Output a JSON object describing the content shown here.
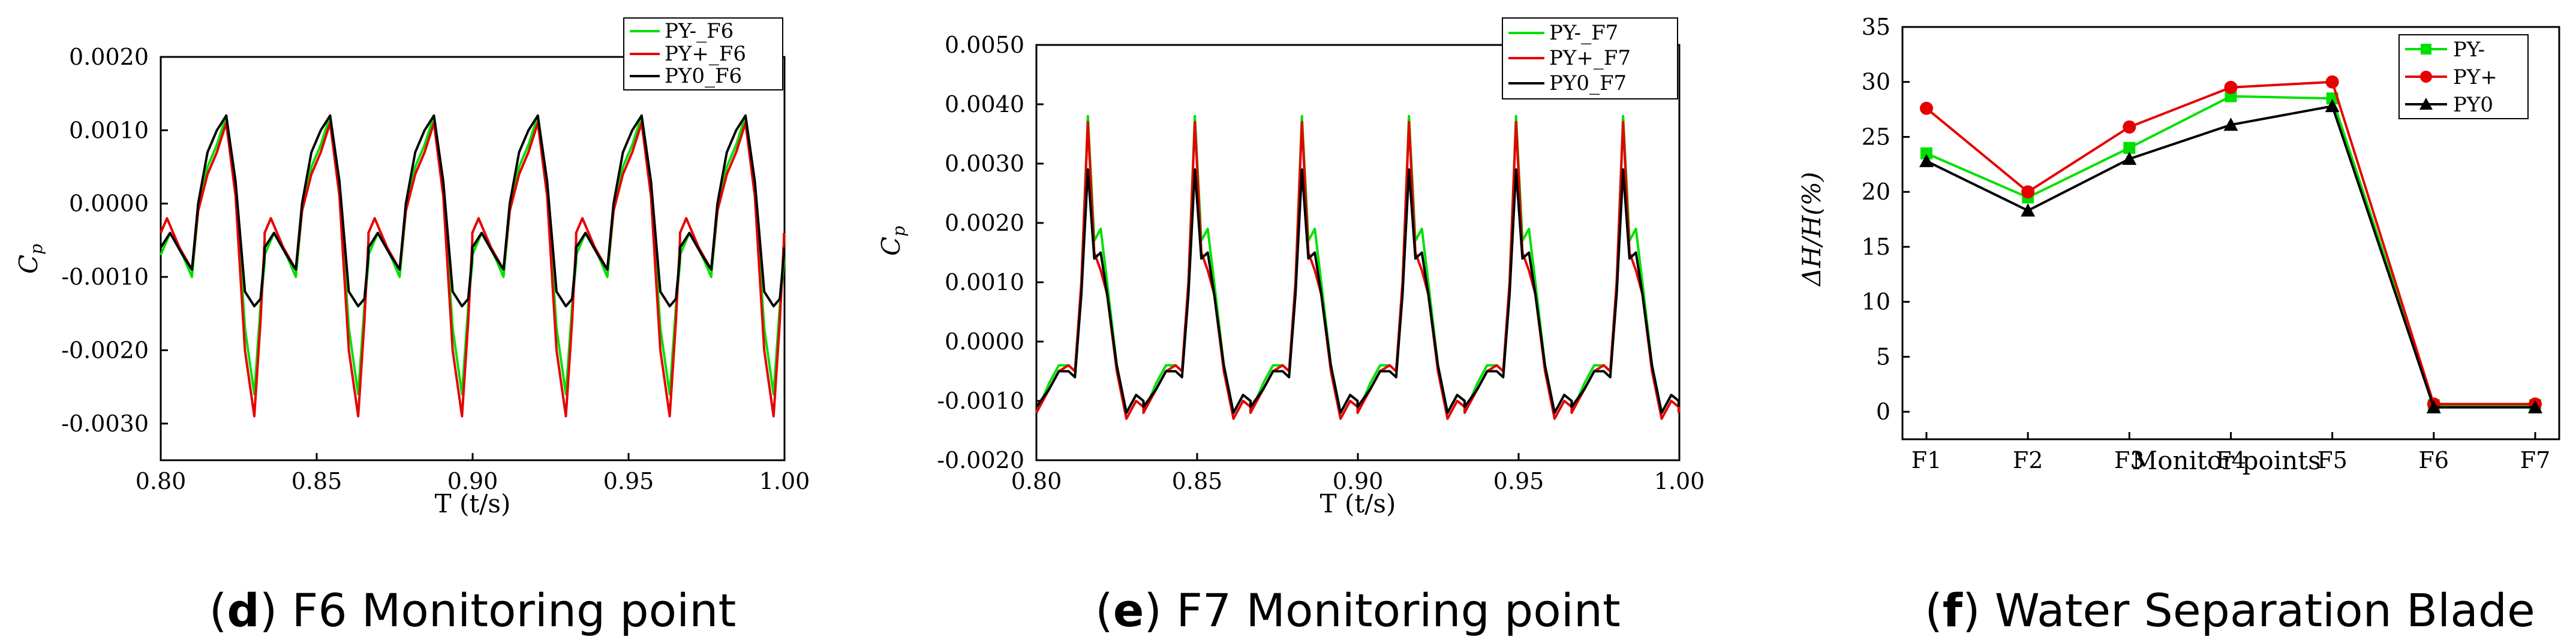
{
  "colors": {
    "green": "#00e000",
    "red": "#e60000",
    "black": "#000000",
    "axis": "#000000"
  },
  "charts": [
    {
      "id": "d",
      "caption_letter": "d",
      "caption_text": " F6 Monitoring point",
      "xlabel": "T (t/s)",
      "ylabel": "Cp",
      "ylabel_main": "C",
      "ylabel_sub": "p",
      "x_ticks": [
        "0.80",
        "0.85",
        "0.90",
        "0.95",
        "1.00"
      ],
      "y_ticks": [
        "0.0020",
        "0.0010",
        "0.0000",
        "-0.0010",
        "-0.0020",
        "-0.0030"
      ],
      "legend": [
        "PY-_F6",
        "PY+_F6",
        "PY0_F6"
      ]
    },
    {
      "id": "e",
      "caption_letter": "e",
      "caption_text": " F7 Monitoring point",
      "xlabel": "T (t/s)",
      "ylabel": "Cp",
      "ylabel_main": "C",
      "ylabel_sub": "p",
      "x_ticks": [
        "0.80",
        "0.85",
        "0.90",
        "0.95",
        "1.00"
      ],
      "y_ticks": [
        "0.0050",
        "0.0040",
        "0.0030",
        "0.0020",
        "0.0010",
        "0.0000",
        "-0.0010",
        "-0.0020"
      ],
      "legend": [
        "PY-_F7",
        "PY+_F7",
        "PY0_F7"
      ]
    },
    {
      "id": "f",
      "caption_letter": "f",
      "caption_text": " Water Separation Blade",
      "xlabel": "Monitor points",
      "ylabel": "ΔH/H(%)",
      "x_ticks": [
        "F1",
        "F2",
        "F3",
        "F4",
        "F5",
        "F6",
        "F7"
      ],
      "y_ticks": [
        "35",
        "30",
        "25",
        "20",
        "15",
        "10",
        "5",
        "0"
      ],
      "legend": [
        "PY-",
        "PY+",
        "PY0"
      ]
    }
  ],
  "chart_data": [
    {
      "type": "line",
      "title": "(d) F6 Monitoring point",
      "xlabel": "T (t/s)",
      "ylabel": "Cp",
      "xlim": [
        0.8,
        1.0
      ],
      "ylim": [
        -0.0035,
        0.002
      ],
      "period": 0.0333,
      "start_phase": 0.8,
      "series": [
        {
          "name": "PY-_F6",
          "color": "green",
          "cycle": [
            [
              0.0,
              -0.0007
            ],
            [
              0.003,
              -0.0004
            ],
            [
              0.007,
              -0.0007
            ],
            [
              0.01,
              -0.001
            ],
            [
              0.012,
              -0.0001
            ],
            [
              0.015,
              0.0005
            ],
            [
              0.018,
              0.0008
            ],
            [
              0.021,
              0.0012
            ],
            [
              0.024,
              0.0002
            ],
            [
              0.027,
              -0.0017
            ],
            [
              0.03,
              -0.0026
            ],
            [
              0.032,
              -0.0014
            ],
            [
              0.0333,
              -0.0008
            ]
          ]
        },
        {
          "name": "PY+_F6",
          "color": "red",
          "cycle": [
            [
              0.0,
              -0.0004
            ],
            [
              0.002,
              -0.0002
            ],
            [
              0.006,
              -0.0006
            ],
            [
              0.01,
              -0.0009
            ],
            [
              0.012,
              -0.0001
            ],
            [
              0.015,
              0.0004
            ],
            [
              0.018,
              0.0007
            ],
            [
              0.021,
              0.0011
            ],
            [
              0.024,
              0.0001
            ],
            [
              0.027,
              -0.002
            ],
            [
              0.03,
              -0.0029
            ],
            [
              0.032,
              -0.0016
            ],
            [
              0.0333,
              -0.0005
            ]
          ]
        },
        {
          "name": "PY0_F6",
          "color": "black",
          "cycle": [
            [
              0.0,
              -0.0006
            ],
            [
              0.003,
              -0.0004
            ],
            [
              0.007,
              -0.0007
            ],
            [
              0.01,
              -0.0009
            ],
            [
              0.012,
              0.0
            ],
            [
              0.015,
              0.0007
            ],
            [
              0.018,
              0.001
            ],
            [
              0.021,
              0.0012
            ],
            [
              0.024,
              0.0003
            ],
            [
              0.027,
              -0.0012
            ],
            [
              0.03,
              -0.0014
            ],
            [
              0.032,
              -0.0013
            ],
            [
              0.0333,
              -0.0007
            ]
          ]
        }
      ]
    },
    {
      "type": "line",
      "title": "(e) F7 Monitoring point",
      "xlabel": "T (t/s)",
      "ylabel": "Cp",
      "xlim": [
        0.8,
        1.0
      ],
      "ylim": [
        -0.002,
        0.005
      ],
      "period": 0.0333,
      "start_phase": 0.8,
      "series": [
        {
          "name": "PY-_F7",
          "color": "green",
          "cycle": [
            [
              0.0,
              -0.0012
            ],
            [
              0.004,
              -0.0007
            ],
            [
              0.007,
              -0.0004
            ],
            [
              0.01,
              -0.0004
            ],
            [
              0.012,
              -0.0005
            ],
            [
              0.014,
              0.001
            ],
            [
              0.016,
              0.0038
            ],
            [
              0.018,
              0.0017
            ],
            [
              0.02,
              0.0019
            ],
            [
              0.022,
              0.001
            ],
            [
              0.025,
              -0.0004
            ],
            [
              0.028,
              -0.0012
            ],
            [
              0.031,
              -0.0009
            ],
            [
              0.0333,
              -0.001
            ]
          ]
        },
        {
          "name": "PY+_F7",
          "color": "red",
          "cycle": [
            [
              0.0,
              -0.0012
            ],
            [
              0.004,
              -0.0008
            ],
            [
              0.007,
              -0.0005
            ],
            [
              0.01,
              -0.0004
            ],
            [
              0.012,
              -0.0005
            ],
            [
              0.014,
              0.001
            ],
            [
              0.016,
              0.0037
            ],
            [
              0.018,
              0.0015
            ],
            [
              0.02,
              0.0012
            ],
            [
              0.022,
              0.0008
            ],
            [
              0.025,
              -0.0005
            ],
            [
              0.028,
              -0.0013
            ],
            [
              0.031,
              -0.001
            ],
            [
              0.0333,
              -0.0011
            ]
          ]
        },
        {
          "name": "PY0_F7",
          "color": "black",
          "cycle": [
            [
              0.0,
              -0.0011
            ],
            [
              0.004,
              -0.0008
            ],
            [
              0.007,
              -0.0005
            ],
            [
              0.01,
              -0.0005
            ],
            [
              0.012,
              -0.0006
            ],
            [
              0.014,
              0.0008
            ],
            [
              0.016,
              0.0029
            ],
            [
              0.018,
              0.0014
            ],
            [
              0.02,
              0.0015
            ],
            [
              0.022,
              0.0008
            ],
            [
              0.025,
              -0.0004
            ],
            [
              0.028,
              -0.0012
            ],
            [
              0.031,
              -0.0009
            ],
            [
              0.0333,
              -0.001
            ]
          ]
        }
      ]
    },
    {
      "type": "line",
      "title": "(f) Water Separation Blade",
      "xlabel": "Monitor points",
      "ylabel": "ΔH/H(%)",
      "categories": [
        "F1",
        "F2",
        "F3",
        "F4",
        "F5",
        "F6",
        "F7"
      ],
      "ylim": [
        -2.5,
        35
      ],
      "series": [
        {
          "name": "PY-",
          "color": "green",
          "marker": "square",
          "values": [
            23.5,
            19.5,
            24.0,
            28.7,
            28.5,
            0.6,
            0.6
          ]
        },
        {
          "name": "PY+",
          "color": "red",
          "marker": "circle",
          "values": [
            27.6,
            20.0,
            25.9,
            29.5,
            30.0,
            0.7,
            0.7
          ]
        },
        {
          "name": "PY0",
          "color": "black",
          "marker": "triangle",
          "values": [
            22.8,
            18.3,
            23.0,
            26.1,
            27.8,
            0.4,
            0.4
          ]
        }
      ]
    }
  ]
}
